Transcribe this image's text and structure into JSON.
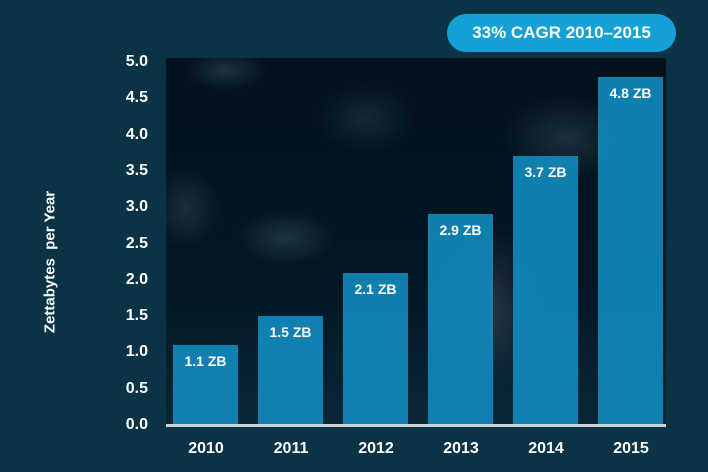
{
  "badge": "33% CAGR 2010–2015",
  "chart_data": {
    "type": "bar",
    "title": "33% CAGR 2010–2015",
    "xlabel": "",
    "ylabel": "Zettabytes  per Year",
    "categories": [
      "2010",
      "2011",
      "2012",
      "2013",
      "2014",
      "2015"
    ],
    "values": [
      1.1,
      1.5,
      2.1,
      2.9,
      3.7,
      4.8
    ],
    "data_labels": [
      "1.1 ZB",
      "1.5 ZB",
      "2.1 ZB",
      "2.9 ZB",
      "3.7 ZB",
      "4.8 ZB"
    ],
    "ylim": [
      0,
      5.0
    ],
    "yticks": [
      "0.0",
      "0.5",
      "1.0",
      "1.5",
      "2.0",
      "2.5",
      "3.0",
      "3.5",
      "4.0",
      "4.5",
      "5.0"
    ],
    "grid": false,
    "legend": null,
    "annotations": [
      "33% CAGR 2010–2015"
    ],
    "colors": {
      "bar": "#1088b9",
      "badge": "#14a2d6",
      "background": "#0b3346"
    }
  }
}
